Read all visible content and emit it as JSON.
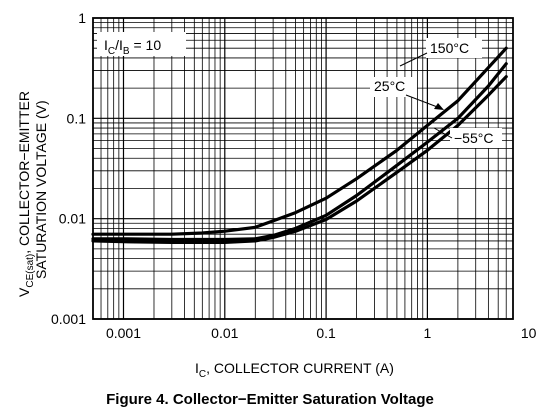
{
  "chart_data": {
    "type": "line",
    "title": "Figure 4. Collector−Emitter Saturation Voltage",
    "xlabel": {
      "prefix": "I",
      "sub": "C",
      "rest": ", COLLECTOR CURRENT (A)"
    },
    "ylabel": {
      "line1_prefix": "V",
      "line1_sub": "CE(sat)",
      "line1_rest": ", COLLECTOR−EMITTER",
      "line2": "SATURATION VOLTAGE (V)"
    },
    "condition": {
      "prefix": "I",
      "sub1": "C",
      "mid": "/I",
      "sub2": "B",
      "rest": " = 10"
    },
    "x_scale": "log",
    "y_scale": "log",
    "xlim": [
      0.0005,
      7
    ],
    "ylim": [
      0.001,
      1
    ],
    "grid": true,
    "x_ticks": [
      {
        "value": 0.001,
        "label": "0.001"
      },
      {
        "value": 0.01,
        "label": "0.01"
      },
      {
        "value": 0.1,
        "label": "0.1"
      },
      {
        "value": 1,
        "label": "1"
      },
      {
        "value": 10,
        "label": "10"
      }
    ],
    "y_ticks": [
      {
        "value": 0.001,
        "label": "0.001"
      },
      {
        "value": 0.01,
        "label": "0.01"
      },
      {
        "value": 0.1,
        "label": "0.1"
      },
      {
        "value": 1,
        "label": "1"
      }
    ],
    "series": [
      {
        "name": "150°C",
        "x": [
          0.0005,
          0.001,
          0.003,
          0.006,
          0.01,
          0.02,
          0.03,
          0.05,
          0.1,
          0.2,
          0.5,
          1,
          2,
          4,
          6
        ],
        "y": [
          0.007,
          0.007,
          0.007,
          0.0072,
          0.0075,
          0.0082,
          0.0095,
          0.0115,
          0.016,
          0.025,
          0.048,
          0.085,
          0.15,
          0.32,
          0.5
        ]
      },
      {
        "name": "25°C",
        "x": [
          0.0005,
          0.001,
          0.003,
          0.006,
          0.01,
          0.02,
          0.03,
          0.05,
          0.1,
          0.2,
          0.5,
          1,
          2,
          4,
          6
        ],
        "y": [
          0.0063,
          0.0063,
          0.0062,
          0.0062,
          0.0062,
          0.0063,
          0.0068,
          0.008,
          0.0108,
          0.017,
          0.034,
          0.058,
          0.1,
          0.21,
          0.35
        ]
      },
      {
        "name": "−55°C",
        "x": [
          0.0005,
          0.001,
          0.003,
          0.006,
          0.01,
          0.02,
          0.03,
          0.05,
          0.1,
          0.2,
          0.5,
          1,
          2,
          4,
          6
        ],
        "y": [
          0.006,
          0.0059,
          0.0058,
          0.0058,
          0.0058,
          0.006,
          0.0065,
          0.0075,
          0.0098,
          0.015,
          0.029,
          0.048,
          0.085,
          0.17,
          0.26
        ]
      }
    ]
  }
}
